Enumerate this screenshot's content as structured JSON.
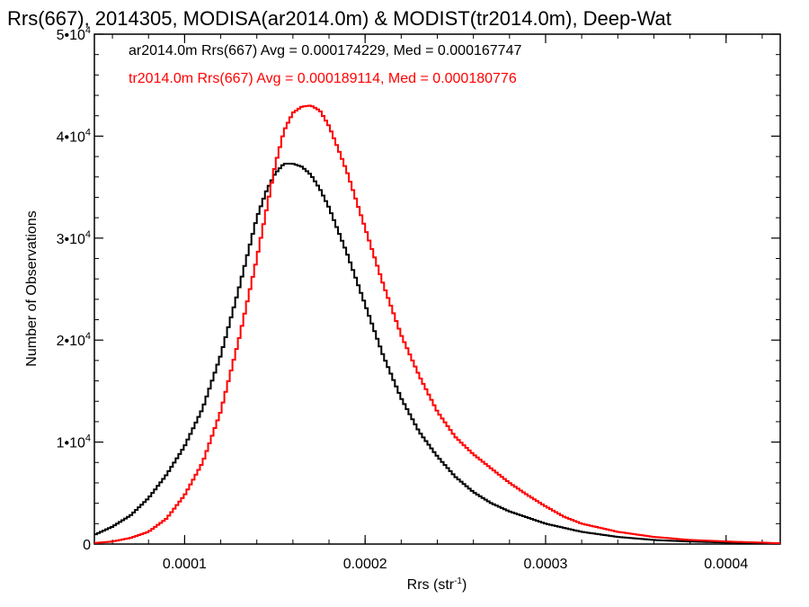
{
  "chart_data": {
    "type": "line",
    "title": "Rrs(667), 2014305, MODISA(ar2014.0m) & MODIST(tr2014.0m), Deep-Wat",
    "xlabel": "Rrs (str",
    "xlabel_sup": "-1",
    "xlabel_close": ")",
    "ylabel": "Number of Observations",
    "xlim": [
      5e-05,
      0.00043
    ],
    "ylim": [
      0,
      50000
    ],
    "grid": false,
    "x_ticks": [
      {
        "value": 0.0001,
        "label": "0.0001"
      },
      {
        "value": 0.0002,
        "label": "0.0002"
      },
      {
        "value": 0.0003,
        "label": "0.0003"
      },
      {
        "value": 0.0004,
        "label": "0.0004"
      }
    ],
    "y_ticks": [
      {
        "value": 0,
        "label": "0",
        "sup": ""
      },
      {
        "value": 10000,
        "label": "1•10",
        "sup": "4"
      },
      {
        "value": 20000,
        "label": "2•10",
        "sup": "4"
      },
      {
        "value": 30000,
        "label": "3•10",
        "sup": "4"
      },
      {
        "value": 40000,
        "label": "4•10",
        "sup": "4"
      },
      {
        "value": 50000,
        "label": "5•10",
        "sup": "4"
      }
    ],
    "annotations": [
      {
        "text": "ar2014.0m Rrs(667) Avg = 0.000174229, Med = 0.000167747",
        "color": "#000000"
      },
      {
        "text": "tr2014.0m Rrs(667) Avg = 0.000189114, Med = 0.000180776",
        "color": "#ff0000"
      }
    ],
    "series": [
      {
        "color": "#000000",
        "x": [
          5e-05,
          6e-05,
          7e-05,
          8e-05,
          9e-05,
          0.0001,
          0.00011,
          0.00012,
          0.00013,
          0.000135,
          0.00014,
          0.000145,
          0.00015,
          0.000155,
          0.00016,
          0.000165,
          0.00017,
          0.000175,
          0.00018,
          0.00019,
          0.0002,
          0.00021,
          0.00022,
          0.00023,
          0.00024,
          0.00025,
          0.00026,
          0.00027,
          0.00028,
          0.00029,
          0.0003,
          0.00032,
          0.00034,
          0.00036,
          0.00038,
          0.0004,
          0.00043
        ],
        "y": [
          900,
          1700,
          2800,
          4500,
          6800,
          9600,
          13300,
          18500,
          25000,
          28500,
          32000,
          34500,
          36300,
          37300,
          37300,
          37000,
          36200,
          34800,
          33000,
          28500,
          23500,
          18500,
          14300,
          11000,
          8600,
          6600,
          5100,
          4000,
          3200,
          2600,
          2000,
          1200,
          700,
          400,
          250,
          150,
          80
        ]
      },
      {
        "color": "#ff0000",
        "x": [
          5e-05,
          6e-05,
          7e-05,
          8e-05,
          9e-05,
          0.0001,
          0.00011,
          0.00012,
          0.00013,
          0.00014,
          0.000145,
          0.00015,
          0.000155,
          0.00016,
          0.000165,
          0.00017,
          0.000175,
          0.00018,
          0.000185,
          0.00019,
          0.0002,
          0.00021,
          0.00022,
          0.00023,
          0.00024,
          0.00025,
          0.00026,
          0.00027,
          0.00028,
          0.00029,
          0.0003,
          0.00031,
          0.00032,
          0.00034,
          0.00036,
          0.00038,
          0.0004,
          0.00043
        ],
        "y": [
          100,
          250,
          600,
          1200,
          2500,
          4800,
          8000,
          13000,
          20000,
          28000,
          32500,
          37000,
          40500,
          42300,
          42900,
          43000,
          42500,
          41000,
          38800,
          36500,
          31000,
          25500,
          20500,
          16500,
          13000,
          10500,
          8800,
          7400,
          6000,
          4800,
          3700,
          2700,
          2000,
          1200,
          700,
          400,
          250,
          80
        ]
      }
    ]
  }
}
